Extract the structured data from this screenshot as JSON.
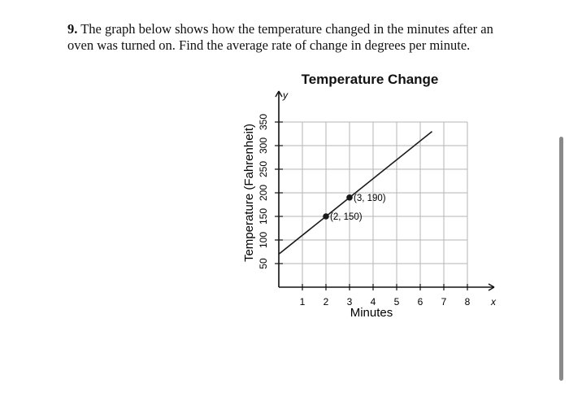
{
  "question": {
    "number": "9.",
    "text": "The graph below shows how the temperature changed in the minutes after an oven was turned on.  Find the average rate of change in degrees per minute."
  },
  "chart_data": {
    "type": "line",
    "title": "Temperature Change",
    "xlabel": "Minutes",
    "ylabel": "Temperature (Fahrenheit)",
    "x_axis_symbol": "x",
    "y_axis_symbol": "y",
    "xlim": [
      0,
      8
    ],
    "ylim": [
      0,
      350
    ],
    "x_ticks": [
      1,
      2,
      3,
      4,
      5,
      6,
      7,
      8
    ],
    "y_ticks": [
      50,
      100,
      150,
      200,
      250,
      300,
      350
    ],
    "grid": true,
    "series": [
      {
        "name": "Temperature",
        "x": [
          0,
          6.5
        ],
        "y": [
          70,
          330
        ]
      }
    ],
    "points": [
      {
        "x": 2,
        "y": 150,
        "label": "(2, 150)"
      },
      {
        "x": 3,
        "y": 190,
        "label": "(3, 190)"
      }
    ]
  },
  "colors": {
    "grid": "#b5b5b5",
    "axis": "#111111",
    "line": "#1a1a1a"
  }
}
